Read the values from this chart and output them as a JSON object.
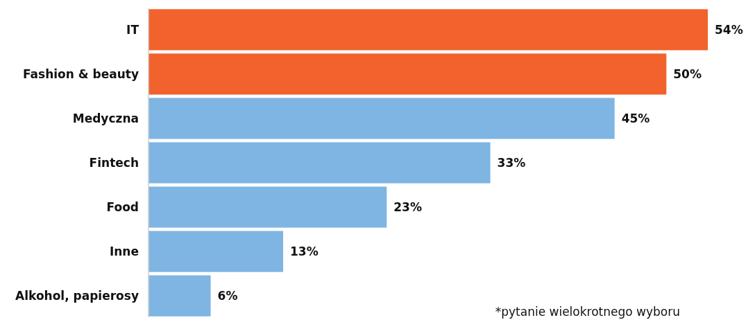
{
  "chart_data": {
    "type": "bar",
    "orientation": "horizontal",
    "categories": [
      "IT",
      "Fashion & beauty",
      "Medyczna",
      "Fintech",
      "Food",
      "Inne",
      "Alkohol, papierosy"
    ],
    "values": [
      54,
      50,
      45,
      33,
      23,
      13,
      6
    ],
    "colors": [
      "#f2622c",
      "#f2622c",
      "#7fb5e3",
      "#7fb5e3",
      "#7fb5e3",
      "#7fb5e3",
      "#7fb5e3"
    ],
    "value_labels": [
      "54%",
      "50%",
      "45%",
      "33%",
      "23%",
      "13%",
      "6%"
    ],
    "annotations": [
      "*pytanie wielokrotnego wyboru"
    ]
  }
}
